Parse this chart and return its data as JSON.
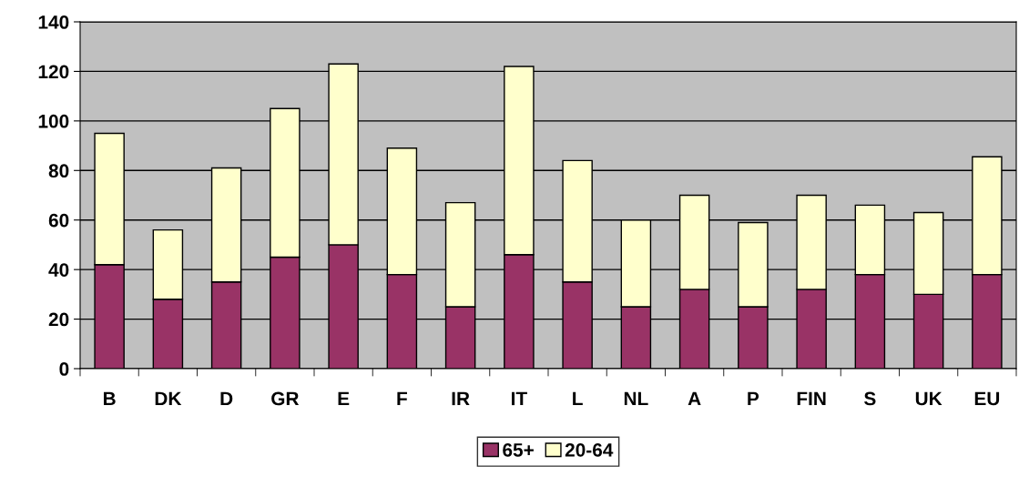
{
  "chart_data": {
    "type": "bar",
    "stacked": true,
    "categories": [
      "B",
      "DK",
      "D",
      "GR",
      "E",
      "F",
      "IR",
      "IT",
      "L",
      "NL",
      "A",
      "P",
      "FIN",
      "S",
      "UK",
      "EU"
    ],
    "series": [
      {
        "name": "65+",
        "color": "#993366",
        "values": [
          42,
          28,
          35,
          45,
          50,
          38,
          25,
          46,
          35,
          25,
          32,
          25,
          32,
          38,
          30,
          38
        ]
      },
      {
        "name": "20-64",
        "color": "#ffffcc",
        "values": [
          53,
          28,
          46,
          60,
          73,
          51,
          42,
          76,
          49,
          35,
          38,
          34,
          38,
          28,
          33,
          47.5
        ]
      }
    ],
    "ylim": [
      0,
      140
    ],
    "yticks": [
      0,
      20,
      40,
      60,
      80,
      100,
      120,
      140
    ],
    "grid": "y",
    "legend": "bottom"
  }
}
